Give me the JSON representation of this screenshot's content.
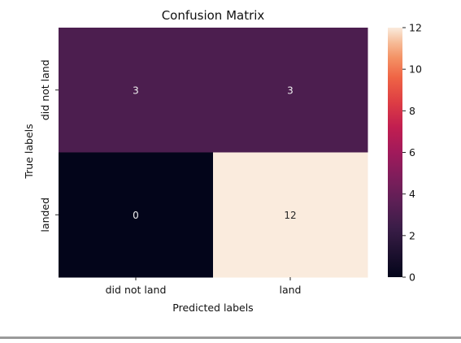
{
  "chart_data": {
    "type": "heatmap",
    "title": "Confusion Matrix",
    "xlabel": "Predicted labels",
    "ylabel": "True labels",
    "x_categories": [
      "did not land",
      "land"
    ],
    "y_categories": [
      "did not land",
      "landed"
    ],
    "values": [
      [
        3,
        3
      ],
      [
        0,
        12
      ]
    ],
    "value_labels": [
      [
        "3",
        "3"
      ],
      [
        "0",
        "12"
      ]
    ],
    "colorbar": {
      "min": 0,
      "max": 12,
      "ticks": [
        0,
        2,
        4,
        6,
        8,
        10,
        12
      ],
      "tick_labels": [
        "0",
        "2",
        "4",
        "6",
        "8",
        "10",
        "12"
      ],
      "colormap": "rocket"
    }
  }
}
